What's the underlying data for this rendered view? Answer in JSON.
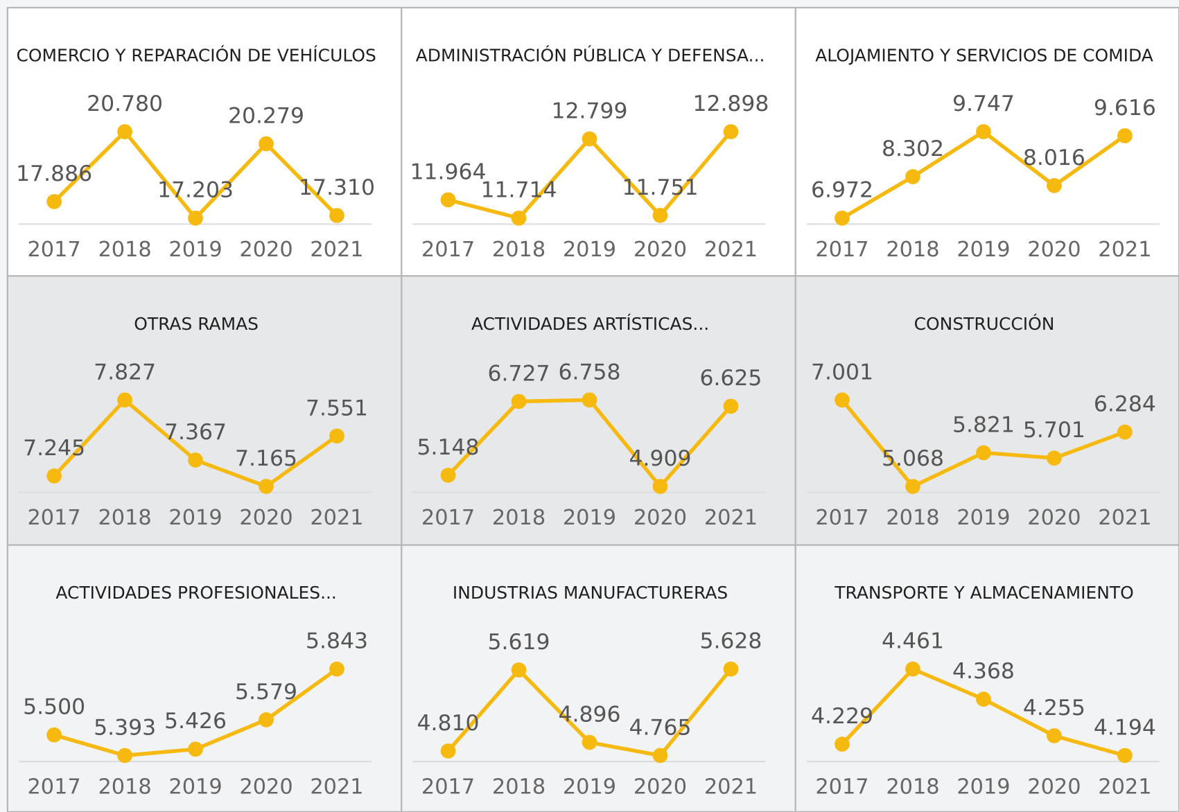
{
  "chart_data": [
    {
      "type": "line",
      "title": "COMERCIO Y REPARACIÓN DE VEHÍCULOS",
      "categories": [
        "2017",
        "2018",
        "2019",
        "2020",
        "2021"
      ],
      "values": [
        17886,
        20780,
        17203,
        20279,
        17310
      ],
      "value_labels": [
        "17.886",
        "20.780",
        "17.203",
        "20.279",
        "17.310"
      ],
      "color": "#f5b90f"
    },
    {
      "type": "line",
      "title": "ADMINISTRACIÓN PÚBLICA Y DEFENSA...",
      "categories": [
        "2017",
        "2018",
        "2019",
        "2020",
        "2021"
      ],
      "values": [
        11964,
        11714,
        12799,
        11751,
        12898
      ],
      "value_labels": [
        "11.964",
        "11.714",
        "12.799",
        "11.751",
        "12.898"
      ],
      "color": "#f5b90f"
    },
    {
      "type": "line",
      "title": "ALOJAMIENTO Y SERVICIOS DE COMIDA",
      "categories": [
        "2017",
        "2018",
        "2019",
        "2020",
        "2021"
      ],
      "values": [
        6972,
        8302,
        9747,
        8016,
        9616
      ],
      "value_labels": [
        "6.972",
        "8.302",
        "9.747",
        "8.016",
        "9.616"
      ],
      "color": "#f5b90f"
    },
    {
      "type": "line",
      "title": "OTRAS RAMAS",
      "categories": [
        "2017",
        "2018",
        "2019",
        "2020",
        "2021"
      ],
      "values": [
        7245,
        7827,
        7367,
        7165,
        7551
      ],
      "value_labels": [
        "7.245",
        "7.827",
        "7.367",
        "7.165",
        "7.551"
      ],
      "color": "#f5b90f"
    },
    {
      "type": "line",
      "title": "ACTIVIDADES ARTÍSTICAS...",
      "categories": [
        "2017",
        "2018",
        "2019",
        "2020",
        "2021"
      ],
      "values": [
        5148,
        6727,
        6758,
        4909,
        6625
      ],
      "value_labels": [
        "5.148",
        "6.727",
        "6.758",
        "4.909",
        "6.625"
      ],
      "color": "#f5b90f"
    },
    {
      "type": "line",
      "title": "CONSTRUCCIÓN",
      "categories": [
        "2017",
        "2018",
        "2019",
        "2020",
        "2021"
      ],
      "values": [
        7001,
        5068,
        5821,
        5701,
        6284
      ],
      "value_labels": [
        "7.001",
        "5.068",
        "5.821",
        "5.701",
        "6.284"
      ],
      "color": "#f5b90f"
    },
    {
      "type": "line",
      "title": "ACTIVIDADES PROFESIONALES...",
      "categories": [
        "2017",
        "2018",
        "2019",
        "2020",
        "2021"
      ],
      "values": [
        5500,
        5393,
        5426,
        5579,
        5843
      ],
      "value_labels": [
        "5.500",
        "5.393",
        "5.426",
        "5.579",
        "5.843"
      ],
      "color": "#f5b90f"
    },
    {
      "type": "line",
      "title": "INDUSTRIAS MANUFACTURERAS",
      "categories": [
        "2017",
        "2018",
        "2019",
        "2020",
        "2021"
      ],
      "values": [
        4810,
        5619,
        4896,
        4765,
        5628
      ],
      "value_labels": [
        "4.810",
        "5.619",
        "4.896",
        "4.765",
        "5.628"
      ],
      "color": "#f5b90f"
    },
    {
      "type": "line",
      "title": "TRANSPORTE Y ALMACENAMIENTO",
      "categories": [
        "2017",
        "2018",
        "2019",
        "2020",
        "2021"
      ],
      "values": [
        4229,
        4461,
        4368,
        4255,
        4194
      ],
      "value_labels": [
        "4.229",
        "4.461",
        "4.368",
        "4.255",
        "4.194"
      ],
      "color": "#f5b90f"
    }
  ]
}
